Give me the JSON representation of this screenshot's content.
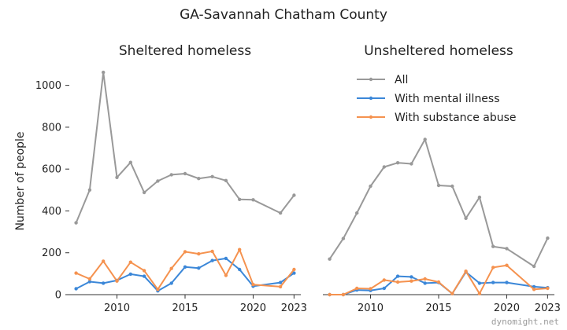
{
  "figure": {
    "suptitle": "GA-Savannah Chatham County",
    "watermark": "dynomight.net"
  },
  "chart_data": [
    {
      "type": "line",
      "title": "Sheltered homeless",
      "xlabel": "",
      "ylabel": "Number of people",
      "xlim": [
        2006.5,
        2023.5
      ],
      "ylim": [
        0,
        1100
      ],
      "xticks": [
        2010,
        2015,
        2020,
        2023
      ],
      "yticks": [
        0,
        200,
        400,
        600,
        800,
        1000
      ],
      "grid": false,
      "series": [
        {
          "name": "All",
          "color": "#999999",
          "x": [
            2007,
            2008,
            2009,
            2010,
            2011,
            2012,
            2013,
            2014,
            2015,
            2016,
            2017,
            2018,
            2019,
            2020,
            2022,
            2023
          ],
          "y": [
            343,
            500,
            1062,
            560,
            632,
            488,
            543,
            573,
            578,
            555,
            564,
            545,
            455,
            453,
            390,
            475
          ]
        },
        {
          "name": "With mental illness",
          "color": "#3b87d8",
          "x": [
            2007,
            2008,
            2009,
            2010,
            2011,
            2012,
            2013,
            2014,
            2015,
            2016,
            2017,
            2018,
            2019,
            2020,
            2022,
            2023
          ],
          "y": [
            28,
            62,
            55,
            68,
            98,
            88,
            18,
            55,
            132,
            127,
            163,
            173,
            120,
            40,
            58,
            103
          ]
        },
        {
          "name": "With substance abuse",
          "color": "#f5924f",
          "x": [
            2007,
            2008,
            2009,
            2010,
            2011,
            2012,
            2013,
            2014,
            2015,
            2016,
            2017,
            2018,
            2019,
            2020,
            2022,
            2023
          ],
          "y": [
            103,
            75,
            160,
            65,
            155,
            115,
            25,
            125,
            205,
            195,
            207,
            92,
            215,
            48,
            38,
            120
          ]
        }
      ]
    },
    {
      "type": "line",
      "title": "Unsheltered homeless",
      "xlabel": "",
      "ylabel": "",
      "xlim": [
        2006.5,
        2023.5
      ],
      "ylim": [
        0,
        1100
      ],
      "xticks": [
        2010,
        2015,
        2020,
        2023
      ],
      "yticks": [],
      "grid": false,
      "legend": "top-right",
      "series": [
        {
          "name": "All",
          "color": "#999999",
          "x": [
            2007,
            2008,
            2009,
            2010,
            2011,
            2012,
            2013,
            2014,
            2015,
            2016,
            2017,
            2018,
            2019,
            2020,
            2022,
            2023
          ],
          "y": [
            170,
            268,
            390,
            518,
            610,
            630,
            625,
            742,
            522,
            518,
            365,
            465,
            230,
            220,
            135,
            270
          ]
        },
        {
          "name": "With mental illness",
          "color": "#3b87d8",
          "x": [
            2007,
            2008,
            2009,
            2010,
            2011,
            2012,
            2013,
            2014,
            2015,
            2016,
            2017,
            2018,
            2019,
            2020,
            2022,
            2023
          ],
          "y": [
            0,
            0,
            22,
            20,
            30,
            88,
            85,
            55,
            58,
            5,
            108,
            55,
            58,
            58,
            38,
            33
          ]
        },
        {
          "name": "With substance abuse",
          "color": "#f5924f",
          "x": [
            2007,
            2008,
            2009,
            2010,
            2011,
            2012,
            2013,
            2014,
            2015,
            2016,
            2017,
            2018,
            2019,
            2020,
            2022,
            2023
          ],
          "y": [
            0,
            0,
            30,
            28,
            70,
            60,
            65,
            75,
            60,
            5,
            112,
            5,
            130,
            140,
            25,
            30
          ]
        }
      ]
    }
  ]
}
